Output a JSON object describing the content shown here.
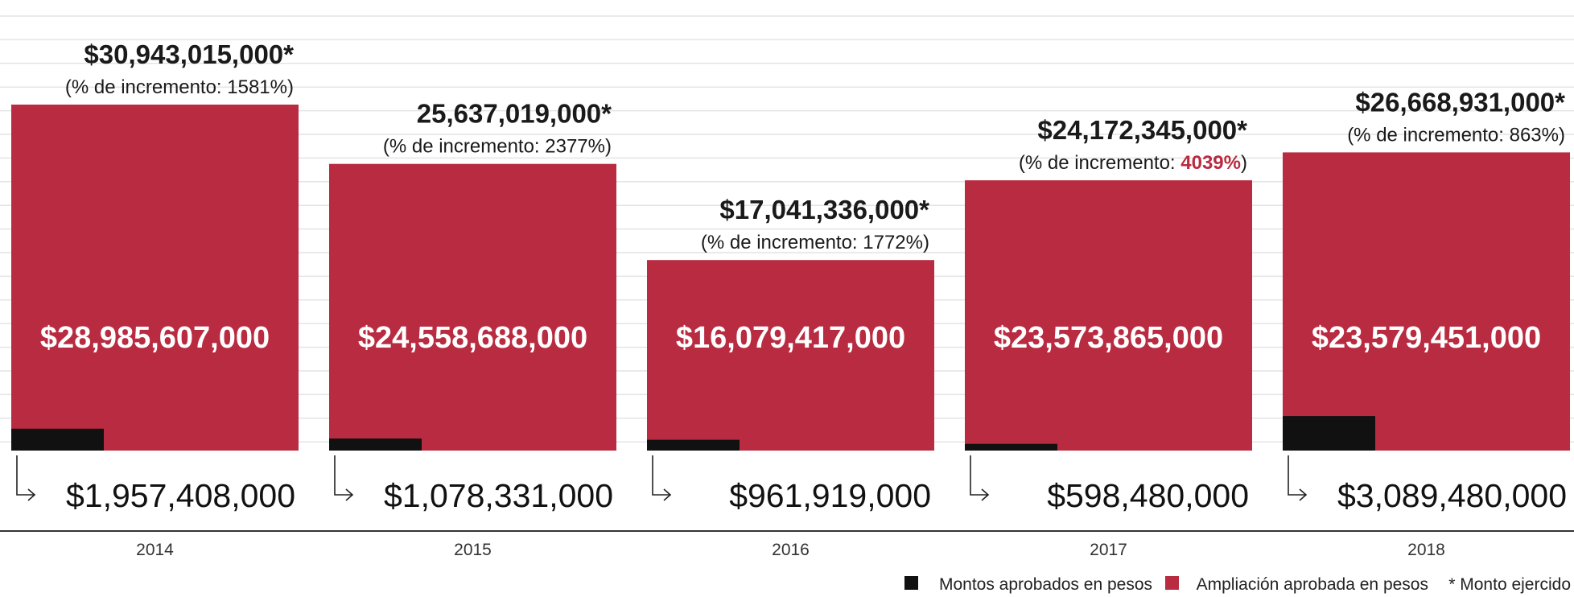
{
  "colors": {
    "ampliacion": "#b82b40",
    "aprobado": "#111111",
    "highlight": "#b82b40"
  },
  "legend": {
    "aprobado_label": "Montos aprobados en pesos",
    "ampliacion_label": "Ampliación aprobada en pesos",
    "ejercido_label": "* Monto ejercido"
  },
  "chart_data": {
    "type": "bar",
    "xlabel": "",
    "ylabel": "",
    "categories": [
      "2014",
      "2015",
      "2016",
      "2017",
      "2018"
    ],
    "grid": true,
    "legend_position": "bottom-right",
    "series": [
      {
        "name": "Montos aprobados en pesos",
        "values": [
          1957408000,
          1078331000,
          961919000,
          598480000,
          3089480000
        ],
        "labels": [
          "$1,957,408,000",
          "$1,078,331,000",
          "$961,919,000",
          "$598,480,000",
          "$3,089,480,000"
        ]
      },
      {
        "name": "Ampliación aprobada en pesos",
        "values": [
          28985607000,
          24558688000,
          16079417000,
          23573865000,
          23579451000
        ],
        "labels": [
          "$28,985,607,000",
          "$24,558,688,000",
          "$16,079,417,000",
          "$23,573,865,000",
          "$23,579,451,000"
        ]
      }
    ],
    "totals": {
      "name": "Monto ejercido",
      "values": [
        30943015000,
        25637019000,
        17041336000,
        24172345000,
        26668931000
      ],
      "labels": [
        "$30,943,015,000*",
        "25,637,019,000*",
        "$17,041,336,000*",
        "$24,172,345,000*",
        "$26,668,931,000*"
      ],
      "pct_prefix": "(% de incremento: ",
      "pct_values": [
        "1581%",
        "2377%",
        "1772%",
        "4039%",
        "863%"
      ],
      "pct_suffix": ")",
      "pct_highlight_index": 3
    }
  }
}
